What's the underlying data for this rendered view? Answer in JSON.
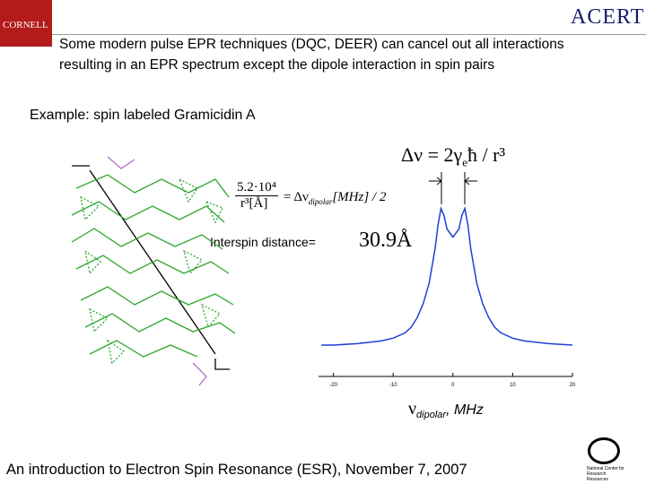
{
  "logos": {
    "left": "CORNELL",
    "right": "ACERT",
    "footer": "National Center for Research Resources"
  },
  "header": {
    "line1": "Some modern pulse EPR techniques (DQC, DEER) can cancel out all interactions",
    "line2": "resulting in an EPR spectrum except the dipole interaction in spin pairs"
  },
  "example": "Example: spin labeled Gramicidin A",
  "formula1": {
    "main": "Δν = 2γ",
    "sub": "e",
    "tail": "ħ / r³"
  },
  "formula2": {
    "numerator": "5.2·10⁴",
    "denominator": "r³[Å]",
    "main": "= Δν",
    "sub": "dipolar",
    "tail": "[MHz] / 2"
  },
  "interspin": {
    "label": "Interspin distance=",
    "value": "30.9Å"
  },
  "chart_data": {
    "type": "line",
    "x_label_main": "ν",
    "x_label_sub": "dipolar",
    "x_label_tail": ", MHz",
    "color": "#1f3fd8",
    "xlim": [
      -22.5,
      20
    ],
    "xticks": [
      -20,
      -10,
      0,
      10,
      20
    ],
    "ylim": [
      -0.23,
      1.05
    ],
    "x": [
      -22,
      -20,
      -16,
      -12,
      -10,
      -8,
      -7,
      -6,
      -5,
      -4,
      -3,
      -2.5,
      -2,
      -1.5,
      -1,
      0,
      1,
      1.5,
      2,
      2.5,
      3,
      4,
      5,
      6,
      7,
      8,
      10,
      12,
      16,
      20
    ],
    "values": [
      0,
      0,
      0.01,
      0.03,
      0.05,
      0.09,
      0.13,
      0.2,
      0.3,
      0.45,
      0.7,
      0.88,
      1.0,
      0.95,
      0.85,
      0.79,
      0.85,
      0.95,
      1.0,
      0.88,
      0.7,
      0.45,
      0.3,
      0.2,
      0.13,
      0.09,
      0.05,
      0.03,
      0.01,
      0
    ]
  },
  "footer": "An introduction to Electron Spin Resonance (ESR), November 7, 2007"
}
